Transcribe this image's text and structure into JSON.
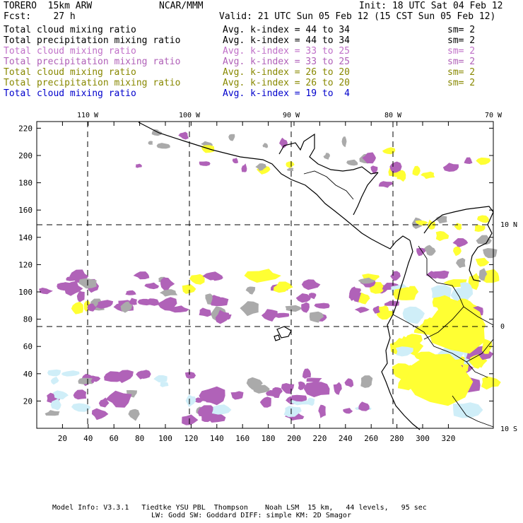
{
  "header": {
    "model_title": "TORERO  15km ARW",
    "org": "NCAR/MMM",
    "init": "Init: 18 UTC Sat 04 Feb 12",
    "fcst": "Fcst:    27 h",
    "valid": "Valid: 21 UTC Sun 05 Feb 12 (15 CST Sun 05 Feb 12)"
  },
  "legend": [
    {
      "label": "Total cloud mixing ratio",
      "index": "Avg. k-index = 44 to 34",
      "sm": "sm= 2",
      "color": "#000000"
    },
    {
      "label": "Total precipitation mixing ratio",
      "index": "Avg. k-index = 44 to 34",
      "sm": "sm= 2",
      "color": "#000000"
    },
    {
      "label": "Total cloud mixing ratio",
      "index": "Avg. k-index = 33 to 25",
      "sm": "sm= 2",
      "color": "#c070c8"
    },
    {
      "label": "Total precipitation mixing ratio",
      "index": "Avg. k-index = 33 to 25",
      "sm": "sm= 2",
      "color": "#b060b8"
    },
    {
      "label": "Total cloud mixing ratio",
      "index": "Avg. k-index = 26 to 20",
      "sm": "sm= 2",
      "color": "#888800"
    },
    {
      "label": "Total precipitation mixing ratio",
      "index": "Avg. k-index = 26 to 20",
      "sm": "sm= 2",
      "color": "#888800"
    },
    {
      "label": "Total cloud mixing ratio",
      "index": "Avg. k-index = 19 to  4",
      "sm": "",
      "color": "#0000cc"
    }
  ],
  "map": {
    "lon_labels": [
      "110 W",
      "100 W",
      "90 W",
      "80 W",
      "70 W"
    ],
    "lat_labels": [
      "10 N",
      "0",
      "10 S"
    ],
    "x_ticks": [
      "20",
      "40",
      "60",
      "80",
      "100",
      "120",
      "140",
      "160",
      "180",
      "200",
      "220",
      "240",
      "260",
      "280",
      "300",
      "320"
    ],
    "y_ticks": [
      "20",
      "40",
      "60",
      "80",
      "100",
      "120",
      "140",
      "160",
      "180",
      "200",
      "220"
    ],
    "colors": {
      "gray": "#aaaaaa",
      "purple": "#b062b8",
      "yellow": "#ffff33",
      "lightblue": "#cfeef8",
      "coast": "#000000"
    }
  },
  "footer": {
    "line1": "Model Info: V3.3.1   Tiedtke YSU PBL  Thompson    Noah LSM  15 km,   44 levels,   95 sec",
    "line2": "LW: Godd SW: Goddard DIFF: simple KM: 2D Smagor"
  }
}
